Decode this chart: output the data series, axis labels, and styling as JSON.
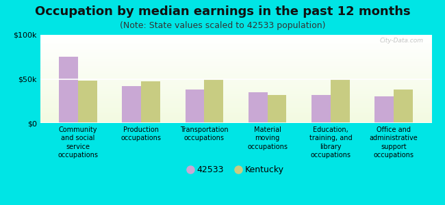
{
  "title": "Occupation by median earnings in the past 12 months",
  "subtitle": "(Note: State values scaled to 42533 population)",
  "categories": [
    "Community\nand social\nservice\noccupations",
    "Production\noccupations",
    "Transportation\noccupations",
    "Material\nmoving\noccupations",
    "Education,\ntraining, and\nlibrary\noccupations",
    "Office and\nadministrative\nsupport\noccupations"
  ],
  "values_42533": [
    75000,
    42000,
    38000,
    35000,
    32000,
    30000
  ],
  "values_kentucky": [
    48000,
    47000,
    50000,
    32000,
    50000,
    38000
  ],
  "color_42533": "#c9a8d4",
  "color_kentucky": "#c8cc82",
  "background_outer": "#00e5e5",
  "background_plot_bottom": "#e8f0d0",
  "background_plot_top": "#f0fff0",
  "ylim": [
    0,
    100000
  ],
  "yticks": [
    0,
    50000,
    100000
  ],
  "ytick_labels": [
    "$0",
    "$50k",
    "$100k"
  ],
  "legend_label_42533": "42533",
  "legend_label_kentucky": "Kentucky",
  "watermark": "City-Data.com",
  "title_fontsize": 13,
  "subtitle_fontsize": 9,
  "tick_fontsize": 8,
  "xlabel_fontsize": 7
}
